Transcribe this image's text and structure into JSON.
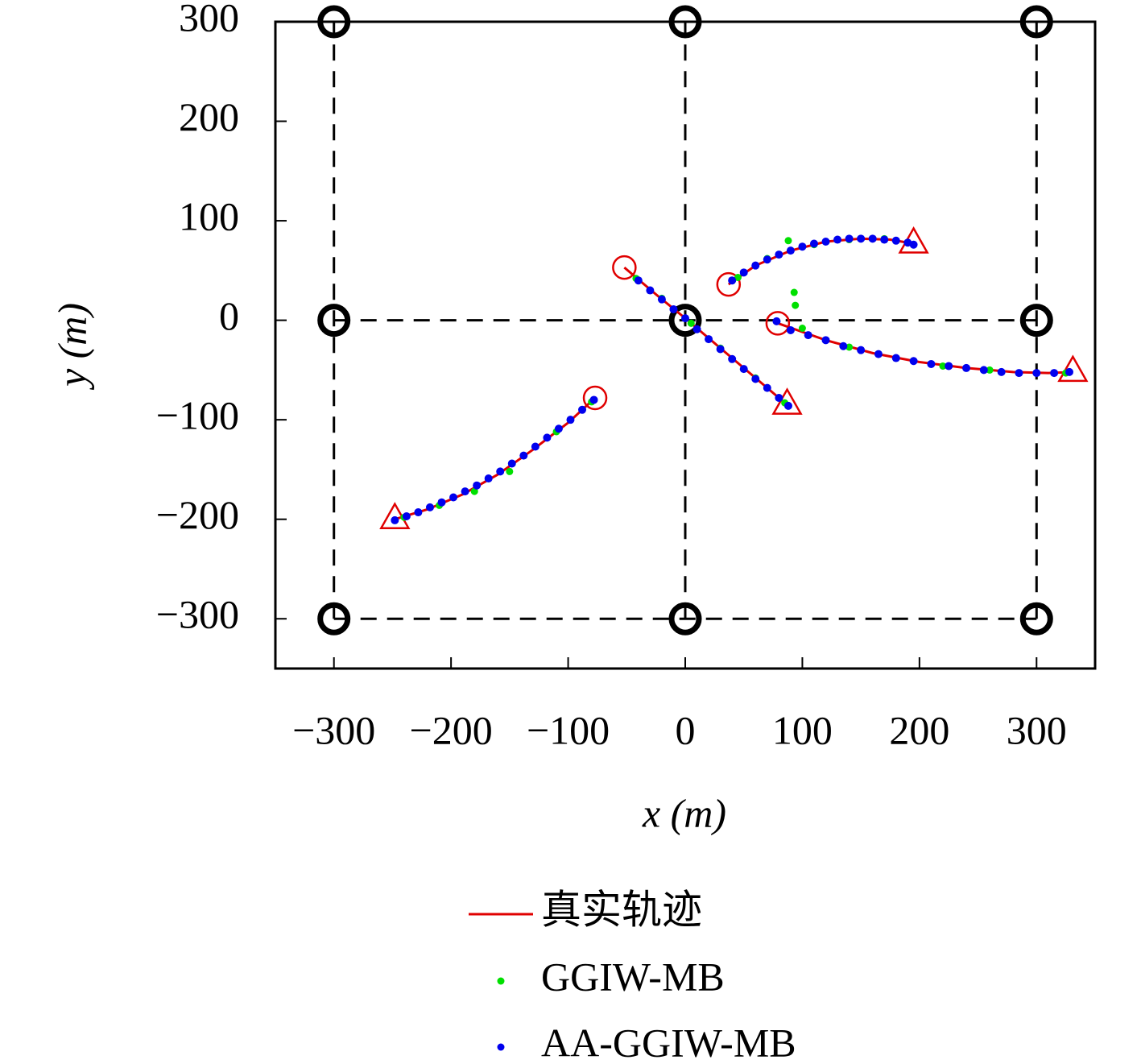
{
  "chart_data": {
    "type": "trajectory",
    "xlabel": "x (m)",
    "ylabel": "y (m)",
    "xlim": [
      -350,
      350
    ],
    "ylim": [
      -350,
      300
    ],
    "xticks": [
      {
        "value": -300,
        "label": "−300"
      },
      {
        "value": -200,
        "label": "−200"
      },
      {
        "value": -100,
        "label": "−100"
      },
      0,
      100,
      200,
      300
    ],
    "yticks": [
      {
        "value": -300,
        "label": "−300"
      },
      {
        "value": -200,
        "label": "−200"
      },
      {
        "value": -100,
        "label": "−100"
      },
      0,
      100,
      200,
      300
    ],
    "sensors": {
      "x": [
        -300,
        0,
        300,
        -300,
        0,
        300,
        -300,
        0,
        300
      ],
      "y": [
        300,
        300,
        300,
        0,
        0,
        0,
        -300,
        -300,
        -300
      ]
    },
    "series": [
      {
        "name": "真实轨迹",
        "color": "#e00000",
        "tracks": [
          {
            "x": [
              -52,
              -25,
              0,
              25,
              50,
              87
            ],
            "y": [
              53,
              26,
              2,
              -23,
              -48,
              -85
            ]
          },
          {
            "x": [
              37,
              60,
              90,
              120,
              150,
              175,
              195
            ],
            "y": [
              36,
              55,
              70,
              79,
              82,
              81,
              77
            ]
          },
          {
            "x": [
              79,
              120,
              160,
              200,
              240,
              280,
              310,
              331
            ],
            "y": [
              -3,
              -20,
              -33,
              -42,
              -48,
              -52,
              -53,
              -52
            ]
          },
          {
            "x": [
              -77,
              -100,
              -130,
              -160,
              -190,
              -220,
              -248
            ],
            "y": [
              -78,
              -103,
              -130,
              -155,
              -175,
              -190,
              -200
            ]
          }
        ]
      },
      {
        "name": "GGIW-MB",
        "color": "#00e000",
        "tracks": [
          {
            "x": [
              -42,
              -20,
              5,
              30,
              60,
              85
            ],
            "y": [
              42,
              22,
              -3,
              -28,
              -58,
              -83
            ]
          },
          {
            "x": [
              45,
              70,
              88,
              110,
              140,
              170,
              190
            ],
            "y": [
              43,
              62,
              80,
              76,
              81,
              82,
              78
            ]
          },
          {
            "x": [
              93,
              94,
              100,
              140,
              180,
              220,
              260,
              300,
              325
            ],
            "y": [
              28,
              15,
              -8,
              -27,
              -38,
              -46,
              -50,
              -53,
              -53
            ]
          },
          {
            "x": [
              -80,
              -110,
              -150,
              -180,
              -210,
              -240
            ],
            "y": [
              -82,
              -112,
              -152,
              -172,
              -186,
              -198
            ]
          }
        ]
      },
      {
        "name": "AA-GGIW-MB",
        "color": "#0000ee",
        "tracks": [
          {
            "x": [
              -40,
              -30,
              -20,
              -10,
              0,
              10,
              20,
              30,
              40,
              50,
              60,
              70,
              80,
              88
            ],
            "y": [
              40,
              30,
              21,
              11,
              2,
              -9,
              -19,
              -29,
              -39,
              -49,
              -59,
              -68,
              -78,
              -86
            ]
          },
          {
            "x": [
              40,
              50,
              60,
              70,
              80,
              90,
              100,
              110,
              120,
              130,
              140,
              150,
              160,
              170,
              180,
              190,
              195
            ],
            "y": [
              40,
              48,
              55,
              61,
              66,
              70,
              74,
              77,
              79,
              81,
              82,
              82,
              82,
              81,
              80,
              78,
              76
            ]
          },
          {
            "x": [
              78,
              90,
              105,
              120,
              135,
              150,
              165,
              180,
              195,
              210,
              225,
              240,
              255,
              270,
              285,
              300,
              315,
              328
            ],
            "y": [
              -1,
              -10,
              -15,
              -20,
              -26,
              -30,
              -34,
              -38,
              -41,
              -44,
              -46,
              -48,
              -50,
              -52,
              -53,
              -53,
              -53,
              -52
            ]
          },
          {
            "x": [
              -78,
              -88,
              -98,
              -108,
              -118,
              -128,
              -138,
              -148,
              -158,
              -168,
              -178,
              -188,
              -198,
              -208,
              -218,
              -228,
              -238,
              -248
            ],
            "y": [
              -80,
              -90,
              -100,
              -109,
              -118,
              -127,
              -136,
              -144,
              -152,
              -159,
              -166,
              -172,
              -178,
              -183,
              -188,
              -193,
              -197,
              -201
            ]
          }
        ]
      }
    ]
  }
}
